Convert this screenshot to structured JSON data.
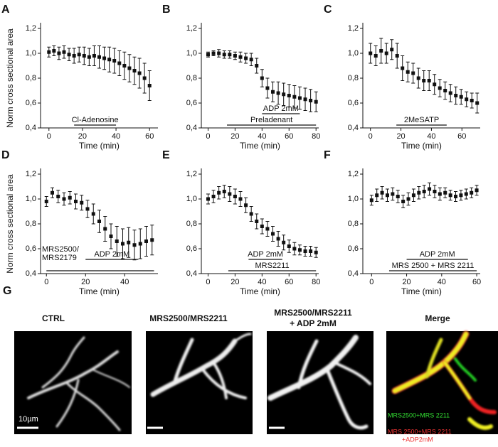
{
  "chart_data": [
    {
      "type": "scatter",
      "panel": "A",
      "ylabel": "Norm cross sectional area",
      "xlabel": "Time (min)",
      "xlim": [
        -5,
        65
      ],
      "xticks": [
        0,
        20,
        40,
        60
      ],
      "ylim": [
        0.4,
        1.2
      ],
      "yticks": [
        {
          "value": 0.4,
          "label": "0,4"
        },
        {
          "value": 0.6,
          "label": "0,6"
        },
        {
          "value": 0.8,
          "label": "0,8"
        },
        {
          "value": 1.0,
          "label": "1,0"
        },
        {
          "value": 1.2,
          "label": "1,2"
        }
      ],
      "x": [
        0,
        3,
        6,
        9,
        12,
        15,
        18,
        21,
        24,
        27,
        30,
        33,
        36,
        39,
        42,
        45,
        48,
        51,
        54,
        57,
        60
      ],
      "values": [
        1.01,
        1.02,
        1.0,
        1.01,
        0.99,
        0.98,
        0.99,
        0.98,
        0.97,
        0.98,
        0.97,
        0.96,
        0.95,
        0.94,
        0.92,
        0.9,
        0.88,
        0.86,
        0.84,
        0.8,
        0.74
      ],
      "errors": [
        0.04,
        0.04,
        0.05,
        0.05,
        0.05,
        0.06,
        0.06,
        0.07,
        0.07,
        0.08,
        0.09,
        0.09,
        0.1,
        0.1,
        0.1,
        0.11,
        0.11,
        0.11,
        0.12,
        0.12,
        0.12
      ],
      "annotations": [
        {
          "text": "Cl-Adenosine",
          "x": [
            15,
            40
          ]
        }
      ]
    },
    {
      "type": "scatter",
      "panel": "B",
      "xlabel": "Time (min)",
      "xlim": [
        -5,
        82
      ],
      "xticks": [
        0,
        20,
        40,
        60,
        80
      ],
      "ylim": [
        0.4,
        1.2
      ],
      "yticks": [
        {
          "value": 0.4,
          "label": "0,4"
        },
        {
          "value": 0.6,
          "label": "0,6"
        },
        {
          "value": 0.8,
          "label": "0,8"
        },
        {
          "value": 1.0,
          "label": "1,0"
        },
        {
          "value": 1.2,
          "label": "1,2"
        }
      ],
      "x": [
        0,
        4,
        8,
        12,
        16,
        20,
        24,
        28,
        32,
        36,
        40,
        44,
        48,
        52,
        56,
        60,
        64,
        68,
        72,
        76,
        80
      ],
      "values": [
        0.99,
        1.0,
        1.0,
        0.99,
        0.99,
        0.98,
        0.97,
        0.96,
        0.95,
        0.9,
        0.8,
        0.72,
        0.69,
        0.68,
        0.67,
        0.66,
        0.65,
        0.64,
        0.63,
        0.62,
        0.61
      ],
      "errors": [
        0.02,
        0.02,
        0.03,
        0.03,
        0.03,
        0.03,
        0.04,
        0.04,
        0.05,
        0.06,
        0.07,
        0.08,
        0.08,
        0.09,
        0.09,
        0.09,
        0.09,
        0.09,
        0.09,
        0.09,
        0.08
      ],
      "annotations": [
        {
          "text": "Preladenant",
          "x": [
            14,
            80
          ]
        },
        {
          "text": "ADP 2mM",
          "x": [
            40,
            68
          ]
        }
      ]
    },
    {
      "type": "scatter",
      "panel": "C",
      "xlabel": "Time (min)",
      "xlim": [
        -5,
        72
      ],
      "xticks": [
        0,
        20,
        40,
        60
      ],
      "ylim": [
        0.4,
        1.2
      ],
      "yticks": [
        {
          "value": 0.4,
          "label": "0,4"
        },
        {
          "value": 0.6,
          "label": "0,6"
        },
        {
          "value": 0.8,
          "label": "0,8"
        },
        {
          "value": 1.0,
          "label": "1,0"
        },
        {
          "value": 1.2,
          "label": "1,2"
        }
      ],
      "x": [
        0,
        3.5,
        7,
        10.5,
        14,
        17.5,
        21,
        24.5,
        28,
        31.5,
        35,
        38.5,
        42,
        45.5,
        49,
        52.5,
        56,
        59.5,
        63,
        66.5,
        70
      ],
      "values": [
        1.0,
        0.98,
        1.02,
        1.0,
        1.03,
        0.98,
        0.88,
        0.85,
        0.84,
        0.8,
        0.78,
        0.78,
        0.75,
        0.72,
        0.7,
        0.68,
        0.66,
        0.65,
        0.63,
        0.62,
        0.6
      ],
      "errors": [
        0.08,
        0.08,
        0.1,
        0.08,
        0.08,
        0.1,
        0.1,
        0.08,
        0.08,
        0.08,
        0.08,
        0.08,
        0.08,
        0.07,
        0.07,
        0.07,
        0.07,
        0.06,
        0.06,
        0.06,
        0.08
      ],
      "annotations": [
        {
          "text": "2MeSATP",
          "x": [
            17,
            50
          ]
        }
      ]
    },
    {
      "type": "scatter",
      "panel": "D",
      "ylabel": "Norm cross sectional area",
      "xlabel": "Time (min)",
      "xlim": [
        -3,
        57
      ],
      "xticks": [
        0,
        20,
        40
      ],
      "ylim": [
        0.4,
        1.2
      ],
      "yticks": [
        {
          "value": 0.4,
          "label": "0,4"
        },
        {
          "value": 0.6,
          "label": "0,6"
        },
        {
          "value": 0.8,
          "label": "0,8"
        },
        {
          "value": 1.0,
          "label": "1,0"
        },
        {
          "value": 1.2,
          "label": "1,2"
        }
      ],
      "x": [
        0,
        3,
        6,
        9,
        12,
        15,
        18,
        21,
        24,
        27,
        30,
        33,
        36,
        39,
        42,
        45,
        48,
        51,
        54
      ],
      "values": [
        0.98,
        1.05,
        1.02,
        1.0,
        1.01,
        0.98,
        0.97,
        0.92,
        0.88,
        0.82,
        0.76,
        0.7,
        0.66,
        0.64,
        0.65,
        0.63,
        0.64,
        0.66,
        0.67
      ],
      "errors": [
        0.04,
        0.04,
        0.05,
        0.05,
        0.05,
        0.06,
        0.06,
        0.07,
        0.08,
        0.09,
        0.1,
        0.1,
        0.12,
        0.12,
        0.12,
        0.12,
        0.12,
        0.12,
        0.12
      ],
      "annotations": [
        {
          "text": [
            "MRS2500/",
            "MRS2179"
          ],
          "x": [
            0,
            55
          ]
        },
        {
          "text": "ADP 2mM",
          "x": [
            20,
            47
          ]
        }
      ]
    },
    {
      "type": "scatter",
      "panel": "E",
      "xlabel": "Time (min)",
      "xlim": [
        -5,
        82
      ],
      "xticks": [
        0,
        20,
        40,
        60,
        80
      ],
      "ylim": [
        0.4,
        1.2
      ],
      "yticks": [
        {
          "value": 0.4,
          "label": "0,4"
        },
        {
          "value": 0.6,
          "label": "0,6"
        },
        {
          "value": 0.8,
          "label": "0,8"
        },
        {
          "value": 1.0,
          "label": "1,0"
        },
        {
          "value": 1.2,
          "label": "1,2"
        }
      ],
      "x": [
        0,
        4,
        8,
        12,
        16,
        20,
        24,
        28,
        32,
        36,
        40,
        44,
        48,
        52,
        56,
        60,
        64,
        68,
        72,
        76,
        80
      ],
      "values": [
        1.0,
        1.02,
        1.05,
        1.06,
        1.04,
        1.02,
        1.0,
        0.95,
        0.88,
        0.82,
        0.78,
        0.76,
        0.72,
        0.68,
        0.65,
        0.62,
        0.6,
        0.59,
        0.58,
        0.58,
        0.57
      ],
      "errors": [
        0.04,
        0.05,
        0.05,
        0.05,
        0.06,
        0.06,
        0.06,
        0.06,
        0.06,
        0.06,
        0.06,
        0.06,
        0.06,
        0.06,
        0.06,
        0.05,
        0.05,
        0.04,
        0.04,
        0.04,
        0.04
      ],
      "annotations": [
        {
          "text": "MRS2211",
          "x": [
            15,
            80
          ]
        },
        {
          "text": "ADP 2mM",
          "x": [
            30,
            55
          ]
        }
      ]
    },
    {
      "type": "scatter",
      "panel": "F",
      "xlabel": "Time (min)",
      "xlim": [
        -5,
        62
      ],
      "xticks": [
        0,
        20,
        40,
        60
      ],
      "ylim": [
        0.4,
        1.2
      ],
      "yticks": [
        {
          "value": 0.4,
          "label": "0,4"
        },
        {
          "value": 0.6,
          "label": "0,6"
        },
        {
          "value": 0.8,
          "label": "0,8"
        },
        {
          "value": 1.0,
          "label": "1,0"
        },
        {
          "value": 1.2,
          "label": "1,2"
        }
      ],
      "x": [
        0,
        3,
        6,
        9,
        12,
        15,
        18,
        21,
        24,
        27,
        30,
        33,
        36,
        39,
        42,
        45,
        48,
        51,
        54,
        57,
        60
      ],
      "values": [
        0.99,
        1.03,
        1.05,
        1.03,
        1.04,
        1.02,
        0.98,
        1.0,
        1.03,
        1.05,
        1.06,
        1.08,
        1.06,
        1.04,
        1.05,
        1.03,
        1.02,
        1.03,
        1.04,
        1.05,
        1.07
      ],
      "errors": [
        0.04,
        0.05,
        0.05,
        0.05,
        0.05,
        0.05,
        0.05,
        0.05,
        0.05,
        0.05,
        0.05,
        0.05,
        0.05,
        0.05,
        0.04,
        0.04,
        0.04,
        0.04,
        0.04,
        0.04,
        0.04
      ],
      "annotations": [
        {
          "text": "MRS 2500 + MRS 2211",
          "x": [
            10,
            60
          ]
        },
        {
          "text": "ADP 2mM",
          "x": [
            20,
            55
          ]
        }
      ]
    }
  ],
  "panel_g": {
    "letter": "G",
    "labels": [
      "CTRL",
      "MRS2500/MRS2211",
      [
        "MRS2500/MRS2211",
        "+ ADP 2mM"
      ],
      "Merge"
    ],
    "scale_bar": "10µm",
    "legend": {
      "green": "MRS2500+MRS 2211",
      "red": [
        "MRS 2500+MRS 2211",
        "+ADP2mM"
      ]
    }
  }
}
